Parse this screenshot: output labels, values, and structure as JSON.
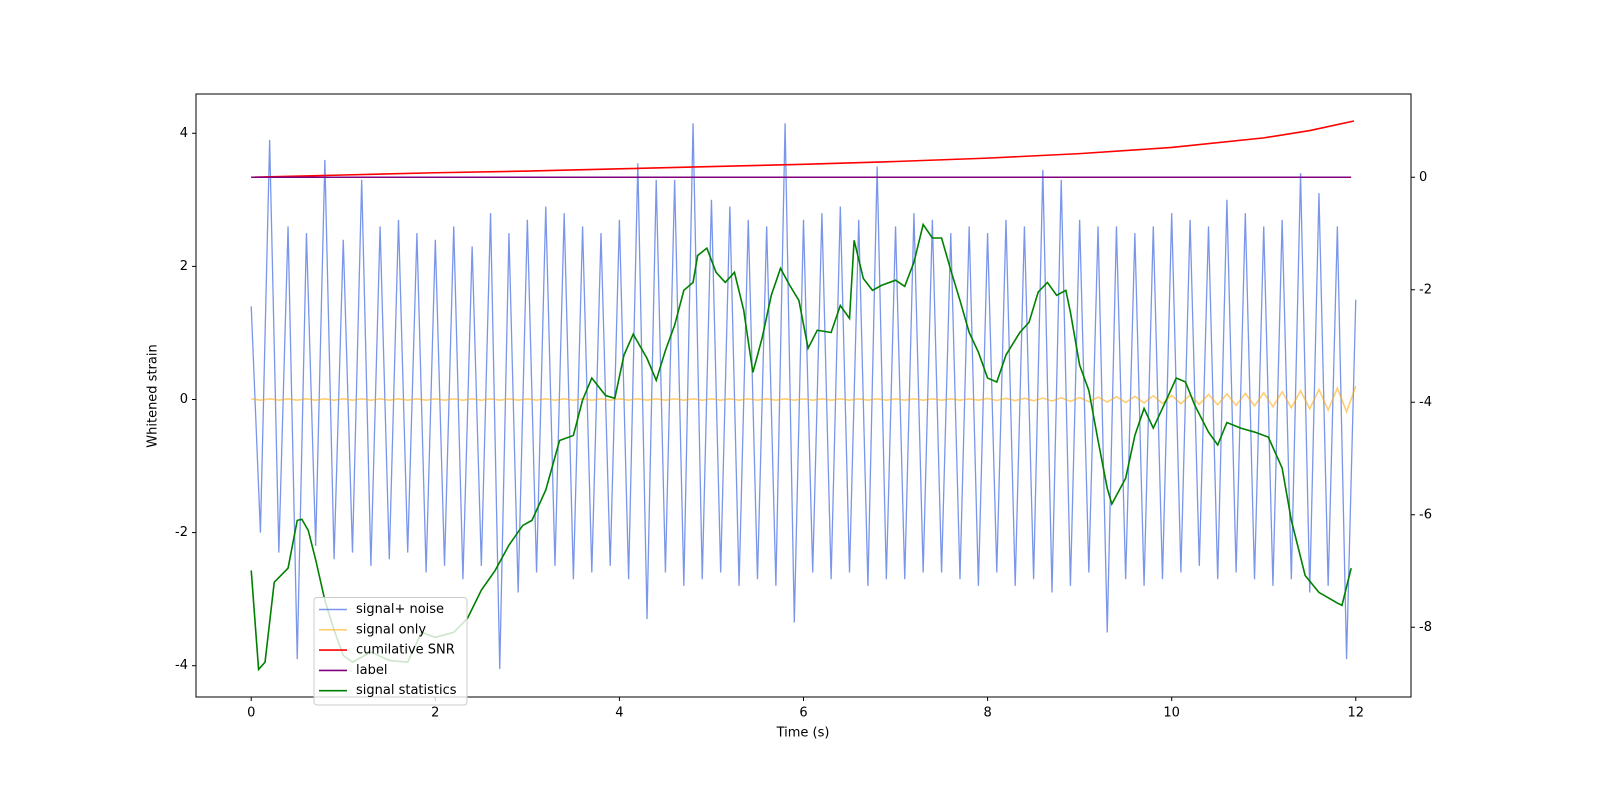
{
  "chart_data": {
    "type": "line",
    "x_label": "Time (s)",
    "y_label": "Whitened strain",
    "xlim": [
      -0.6,
      12.6
    ],
    "xticks": [
      0,
      2,
      4,
      6,
      8,
      10,
      12
    ],
    "ylim": [
      -4.47,
      4.59
    ],
    "yticks": [
      -4,
      -2,
      0,
      2,
      4
    ],
    "y2lim": [
      -9.24,
      1.48
    ],
    "y2ticks": [
      -8,
      -6,
      -4,
      -2,
      0
    ],
    "grid": false,
    "legend": "lower left",
    "series": [
      {
        "name": "signal+ noise",
        "color": "royalblue",
        "axis": "y",
        "x": [
          0,
          0.1,
          0.2,
          0.3,
          0.4,
          0.5,
          0.6,
          0.7,
          0.8,
          0.9,
          1,
          1.1,
          1.2,
          1.3,
          1.4,
          1.5,
          1.6,
          1.7,
          1.8,
          1.9,
          2,
          2.1,
          2.2,
          2.3,
          2.4,
          2.5,
          2.6,
          2.7,
          2.8,
          2.9,
          3,
          3.1,
          3.2,
          3.3,
          3.4,
          3.5,
          3.6,
          3.7,
          3.8,
          3.9,
          4,
          4.1,
          4.2,
          4.3,
          4.4,
          4.5,
          4.6,
          4.7,
          4.8,
          4.9,
          5,
          5.1,
          5.2,
          5.3,
          5.4,
          5.5,
          5.6,
          5.7,
          5.8,
          5.9,
          6,
          6.1,
          6.2,
          6.3,
          6.4,
          6.5,
          6.6,
          6.7,
          6.8,
          6.9,
          7,
          7.1,
          7.2,
          7.3,
          7.4,
          7.5,
          7.6,
          7.7,
          7.8,
          7.9,
          8,
          8.1,
          8.2,
          8.3,
          8.4,
          8.5,
          8.6,
          8.7,
          8.8,
          8.9,
          9,
          9.1,
          9.2,
          9.3,
          9.4,
          9.5,
          9.6,
          9.7,
          9.8,
          9.9,
          10,
          10.1,
          10.2,
          10.3,
          10.4,
          10.5,
          10.6,
          10.7,
          10.8,
          10.9,
          11,
          11.1,
          11.2,
          11.3,
          11.4,
          11.5,
          11.6,
          11.7,
          11.8,
          11.9,
          12
        ],
        "values": [
          1.4,
          -2.0,
          3.9,
          -2.3,
          2.6,
          -3.9,
          2.5,
          -2.2,
          3.6,
          -2.4,
          2.4,
          -2.3,
          3.3,
          -2.5,
          2.6,
          -2.4,
          2.7,
          -2.3,
          2.5,
          -2.6,
          2.4,
          -2.5,
          2.6,
          -2.7,
          2.3,
          -2.5,
          2.8,
          -4.05,
          2.5,
          -2.9,
          2.7,
          -2.6,
          2.9,
          -2.5,
          2.8,
          -2.7,
          2.6,
          -2.6,
          2.5,
          -2.5,
          2.7,
          -2.7,
          3.55,
          -3.3,
          3.3,
          -2.6,
          3.3,
          -2.8,
          4.15,
          -2.7,
          3.0,
          -2.6,
          2.9,
          -2.8,
          2.7,
          -2.7,
          2.6,
          -2.8,
          4.15,
          -3.35,
          2.7,
          -2.6,
          2.8,
          -2.7,
          2.9,
          -2.6,
          2.7,
          -2.8,
          3.5,
          -2.7,
          2.6,
          -2.7,
          2.8,
          -2.6,
          2.7,
          -2.6,
          2.5,
          -2.7,
          2.6,
          -2.8,
          2.5,
          -2.6,
          2.7,
          -2.8,
          2.6,
          -2.7,
          3.45,
          -2.9,
          3.3,
          -2.8,
          2.7,
          -2.6,
          2.6,
          -3.5,
          2.6,
          -2.7,
          2.5,
          -2.8,
          2.6,
          -2.7,
          2.8,
          -2.6,
          2.7,
          -2.5,
          2.6,
          -2.7,
          3.0,
          -2.6,
          2.8,
          -2.7,
          2.6,
          -2.8,
          2.7,
          -2.7,
          3.4,
          -2.9,
          3.1,
          -2.8,
          2.6,
          -3.9,
          1.5
        ]
      },
      {
        "name": "signal only",
        "color": "orange",
        "axis": "y",
        "x": [
          0,
          0.1,
          0.2,
          0.3,
          0.4,
          0.5,
          0.6,
          0.7,
          0.8,
          0.9,
          1,
          1.1,
          1.2,
          1.3,
          1.4,
          1.5,
          1.6,
          1.7,
          1.8,
          1.9,
          2,
          2.1,
          2.2,
          2.3,
          2.4,
          2.5,
          2.6,
          2.7,
          2.8,
          2.9,
          3,
          3.1,
          3.2,
          3.3,
          3.4,
          3.5,
          3.6,
          3.7,
          3.8,
          3.9,
          4,
          4.1,
          4.2,
          4.3,
          4.4,
          4.5,
          4.6,
          4.7,
          4.8,
          4.9,
          5,
          5.1,
          5.2,
          5.3,
          5.4,
          5.5,
          5.6,
          5.7,
          5.8,
          5.9,
          6,
          6.1,
          6.2,
          6.3,
          6.4,
          6.5,
          6.6,
          6.7,
          6.8,
          6.9,
          7,
          7.1,
          7.2,
          7.3,
          7.4,
          7.5,
          7.6,
          7.7,
          7.8,
          7.9,
          8,
          8.1,
          8.2,
          8.3,
          8.4,
          8.5,
          8.6,
          8.7,
          8.8,
          8.9,
          9,
          9.1,
          9.2,
          9.3,
          9.4,
          9.5,
          9.6,
          9.7,
          9.8,
          9.9,
          10,
          10.1,
          10.2,
          10.3,
          10.4,
          10.5,
          10.6,
          10.7,
          10.8,
          10.9,
          11,
          11.1,
          11.2,
          11.3,
          11.4,
          11.5,
          11.6,
          11.7,
          11.8,
          11.9,
          12
        ],
        "values": [
          0.01,
          -0.01,
          0.01,
          -0.01,
          0.01,
          -0.01,
          0.01,
          -0.01,
          0.01,
          -0.01,
          0.01,
          -0.01,
          0.01,
          -0.01,
          0.01,
          -0.01,
          0.01,
          -0.01,
          0.01,
          -0.01,
          0.01,
          -0.01,
          0.01,
          -0.01,
          0.01,
          -0.01,
          0.01,
          -0.01,
          0.01,
          -0.01,
          0.01,
          -0.01,
          0.01,
          -0.01,
          0.01,
          -0.01,
          0.01,
          -0.01,
          0.01,
          -0.01,
          0.01,
          -0.01,
          0.01,
          -0.01,
          0.01,
          -0.01,
          0.01,
          -0.01,
          0.01,
          -0.01,
          0.01,
          -0.01,
          0.01,
          -0.01,
          0.01,
          -0.01,
          0.01,
          -0.01,
          0.01,
          -0.01,
          0.01,
          -0.01,
          0.01,
          -0.01,
          0.01,
          -0.01,
          0.01,
          -0.01,
          0.01,
          -0.01,
          0.01,
          -0.01,
          0.01,
          -0.01,
          0.01,
          -0.01,
          0.01,
          -0.01,
          0.01,
          -0.01,
          0.015,
          -0.015,
          0.017,
          -0.018,
          0.019,
          -0.02,
          0.022,
          -0.024,
          0.026,
          -0.028,
          0.03,
          -0.033,
          0.036,
          -0.039,
          0.042,
          -0.045,
          0.048,
          -0.052,
          0.056,
          -0.058,
          0.06,
          -0.064,
          0.068,
          -0.072,
          0.076,
          -0.08,
          0.084,
          -0.088,
          0.092,
          -0.096,
          0.1,
          -0.108,
          0.116,
          -0.124,
          0.132,
          -0.14,
          0.15,
          -0.16,
          0.17,
          -0.185,
          0.2
        ]
      },
      {
        "name": "cumilative SNR",
        "color": "red",
        "axis": "y2",
        "x": [
          0,
          1,
          2,
          3,
          4,
          5,
          6,
          7,
          8,
          9,
          10,
          11,
          11.5,
          11.98
        ],
        "values": [
          0,
          0.04,
          0.08,
          0.11,
          0.15,
          0.19,
          0.23,
          0.28,
          0.34,
          0.42,
          0.53,
          0.7,
          0.83,
          1.0
        ]
      },
      {
        "name": "label",
        "color": "purple",
        "axis": "y2",
        "x": [
          0,
          11.95
        ],
        "values": [
          0,
          0
        ]
      },
      {
        "name": "signal statistics",
        "color": "green",
        "axis": "y2",
        "x": [
          0,
          0.08,
          0.15,
          0.25,
          0.4,
          0.5,
          0.55,
          0.62,
          0.7,
          0.8,
          0.9,
          1.0,
          1.1,
          1.3,
          1.5,
          1.7,
          1.85,
          2.0,
          2.2,
          2.35,
          2.5,
          2.65,
          2.8,
          2.95,
          3.05,
          3.2,
          3.35,
          3.5,
          3.6,
          3.7,
          3.85,
          3.95,
          4.05,
          4.15,
          4.3,
          4.4,
          4.5,
          4.6,
          4.7,
          4.8,
          4.85,
          4.95,
          5.05,
          5.15,
          5.25,
          5.35,
          5.45,
          5.55,
          5.65,
          5.75,
          5.85,
          5.95,
          6.05,
          6.15,
          6.3,
          6.4,
          6.5,
          6.55,
          6.65,
          6.75,
          6.85,
          7.0,
          7.1,
          7.2,
          7.3,
          7.4,
          7.5,
          7.6,
          7.7,
          7.8,
          7.9,
          8.0,
          8.1,
          8.2,
          8.35,
          8.45,
          8.55,
          8.65,
          8.75,
          8.85,
          8.9,
          9.0,
          9.1,
          9.2,
          9.3,
          9.35,
          9.5,
          9.6,
          9.7,
          9.8,
          9.95,
          10.05,
          10.15,
          10.25,
          10.4,
          10.5,
          10.6,
          10.75,
          10.9,
          11.05,
          11.2,
          11.3,
          11.45,
          11.6,
          11.8,
          11.85,
          11.95
        ],
        "values": [
          -6.99,
          -8.75,
          -8.62,
          -7.2,
          -6.95,
          -6.1,
          -6.08,
          -6.28,
          -6.8,
          -7.52,
          -8.05,
          -8.5,
          -8.62,
          -8.44,
          -8.59,
          -8.62,
          -8.09,
          -8.18,
          -8.09,
          -7.84,
          -7.34,
          -6.99,
          -6.54,
          -6.19,
          -6.1,
          -5.56,
          -4.68,
          -4.59,
          -3.96,
          -3.57,
          -3.88,
          -3.93,
          -3.16,
          -2.79,
          -3.22,
          -3.61,
          -3.08,
          -2.63,
          -2.01,
          -1.87,
          -1.39,
          -1.26,
          -1.69,
          -1.87,
          -1.69,
          -2.36,
          -3.47,
          -2.86,
          -2.1,
          -1.62,
          -1.92,
          -2.19,
          -3.04,
          -2.72,
          -2.76,
          -2.28,
          -2.51,
          -1.12,
          -1.8,
          -2.01,
          -1.92,
          -1.83,
          -1.94,
          -1.51,
          -0.84,
          -1.08,
          -1.08,
          -1.65,
          -2.19,
          -2.76,
          -3.11,
          -3.57,
          -3.64,
          -3.16,
          -2.76,
          -2.58,
          -2.04,
          -1.87,
          -2.1,
          -2.01,
          -2.4,
          -3.34,
          -3.79,
          -4.68,
          -5.53,
          -5.81,
          -5.35,
          -4.59,
          -4.11,
          -4.46,
          -3.93,
          -3.57,
          -3.64,
          -4.05,
          -4.53,
          -4.76,
          -4.36,
          -4.46,
          -4.53,
          -4.62,
          -5.17,
          -6.1,
          -7.08,
          -7.38,
          -7.57,
          -7.61,
          -6.95
        ]
      }
    ]
  }
}
